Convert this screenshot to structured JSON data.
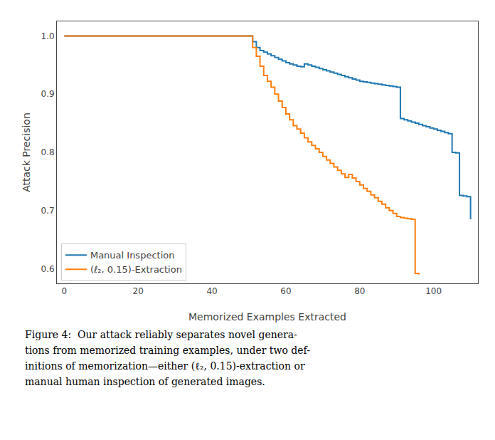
{
  "chart_data": {
    "type": "step",
    "xlabel": "Memorized Examples Extracted",
    "ylabel": "Attack Precision",
    "xlim": [
      -2,
      112
    ],
    "ylim": [
      0.575,
      1.025
    ],
    "xticks": [
      0,
      20,
      40,
      60,
      80,
      100
    ],
    "yticks": [
      0.6,
      0.7,
      0.8,
      0.9,
      {
        "value": 1.0,
        "label": "1.0"
      }
    ],
    "grid": false,
    "legend": "lower left",
    "annotations": [
      "Figure 4:  Our attack reliably separates novel genera-",
      "tions from memorized training examples, under two def-",
      "initions of memorization—either (ℓ₂, 0.15)-extraction or",
      "manual human inspection of generated images."
    ],
    "series": [
      {
        "name": "Manual Inspection",
        "color": "#1f77b4",
        "x": [
          0,
          50,
          51,
          52,
          53,
          54,
          55,
          56,
          57,
          58,
          59,
          60,
          61,
          62,
          63,
          64,
          65,
          66,
          67,
          68,
          69,
          70,
          71,
          72,
          73,
          74,
          75,
          76,
          77,
          78,
          79,
          80,
          81,
          82,
          83,
          84,
          85,
          86,
          87,
          88,
          89,
          90,
          91,
          92,
          93,
          94,
          95,
          96,
          97,
          98,
          99,
          100,
          101,
          102,
          103,
          104,
          105,
          106,
          107,
          108,
          109,
          110
        ],
        "values": [
          1.0,
          1.0,
          0.99,
          0.98,
          0.975,
          0.972,
          0.969,
          0.966,
          0.963,
          0.96,
          0.957,
          0.954,
          0.952,
          0.95,
          0.948,
          0.947,
          0.952,
          0.95,
          0.948,
          0.946,
          0.944,
          0.942,
          0.94,
          0.938,
          0.936,
          0.934,
          0.932,
          0.93,
          0.928,
          0.926,
          0.924,
          0.922,
          0.921,
          0.92,
          0.919,
          0.918,
          0.917,
          0.916,
          0.915,
          0.914,
          0.913,
          0.912,
          0.858,
          0.856,
          0.854,
          0.852,
          0.85,
          0.848,
          0.846,
          0.844,
          0.842,
          0.84,
          0.838,
          0.836,
          0.834,
          0.832,
          0.8,
          0.799,
          0.726,
          0.725,
          0.724,
          0.685
        ]
      },
      {
        "name": "(ℓ₂, 0.15)-Extraction",
        "color": "#ff7f0e",
        "x": [
          0,
          50,
          51,
          52,
          53,
          54,
          55,
          56,
          57,
          58,
          59,
          60,
          61,
          62,
          63,
          64,
          65,
          66,
          67,
          68,
          69,
          70,
          71,
          72,
          73,
          74,
          75,
          76,
          77,
          78,
          79,
          80,
          81,
          82,
          83,
          84,
          85,
          86,
          87,
          88,
          89,
          90,
          91,
          92,
          93,
          94,
          95,
          96
        ],
        "values": [
          1.0,
          1.0,
          0.98,
          0.965,
          0.948,
          0.932,
          0.922,
          0.912,
          0.9,
          0.888,
          0.877,
          0.866,
          0.856,
          0.846,
          0.84,
          0.833,
          0.825,
          0.818,
          0.812,
          0.806,
          0.8,
          0.793,
          0.787,
          0.781,
          0.775,
          0.769,
          0.763,
          0.757,
          0.762,
          0.756,
          0.75,
          0.744,
          0.738,
          0.733,
          0.727,
          0.722,
          0.716,
          0.711,
          0.705,
          0.7,
          0.695,
          0.69,
          0.688,
          0.687,
          0.686,
          0.685,
          0.592,
          0.59
        ]
      }
    ]
  }
}
